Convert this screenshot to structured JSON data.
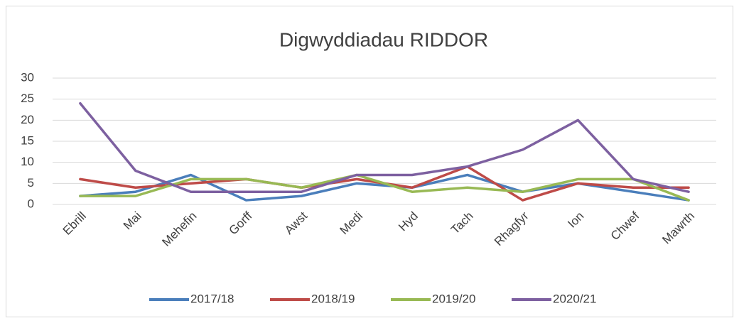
{
  "chart_data": {
    "type": "line",
    "title": "Digwyddiadau RIDDOR",
    "categories": [
      "Ebrill",
      "Mai",
      "Mehefin",
      "Gorff",
      "Awst",
      "Medi",
      "Hyd",
      "Tach",
      "Rhagfyr",
      "Ion",
      "Chwef",
      "Mawrth"
    ],
    "series": [
      {
        "name": "2017/18",
        "color": "#4a7ebb",
        "values": [
          2,
          3,
          7,
          1,
          2,
          5,
          4,
          7,
          3,
          5,
          3,
          1
        ]
      },
      {
        "name": "2018/19",
        "color": "#be4b48",
        "values": [
          6,
          4,
          5,
          6,
          4,
          6,
          4,
          9,
          1,
          5,
          4,
          4
        ]
      },
      {
        "name": "2019/20",
        "color": "#98b954",
        "values": [
          2,
          2,
          6,
          6,
          4,
          7,
          3,
          4,
          3,
          6,
          6,
          1
        ]
      },
      {
        "name": "2020/21",
        "color": "#7d60a0",
        "values": [
          24,
          8,
          3,
          3,
          3,
          7,
          7,
          9,
          13,
          20,
          6,
          3
        ]
      }
    ],
    "ylim": [
      0,
      30
    ],
    "yticks": [
      0,
      5,
      10,
      15,
      20,
      25,
      30
    ],
    "grid": true,
    "legend": "bottom"
  }
}
